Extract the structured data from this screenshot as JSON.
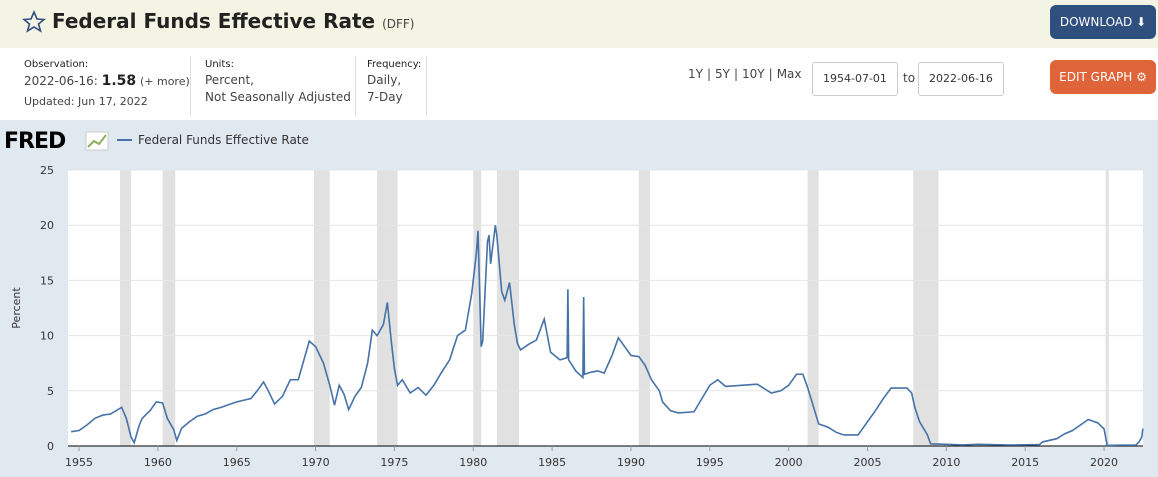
{
  "header": {
    "title": "Federal Funds Effective Rate",
    "code": "(DFF)",
    "download": "DOWNLOAD"
  },
  "info": {
    "observation_label": "Observation:",
    "observation_date": "2022-06-16:",
    "observation_value": "1.58",
    "more": "(+ more)",
    "updated": "Updated: Jun 17, 2022",
    "units_label": "Units:",
    "units": [
      "Percent,",
      "Not Seasonally Adjusted"
    ],
    "frequency_label": "Frequency:",
    "frequency": [
      "Daily,",
      "7-Day"
    ]
  },
  "controls": {
    "ranges": [
      "1Y",
      "5Y",
      "10Y",
      "Max"
    ],
    "separator": "|",
    "start": "1954-07-01",
    "to": "to",
    "end": "2022-06-16",
    "edit": "EDIT GRAPH"
  },
  "chart_data": {
    "type": "line",
    "brand": "FRED",
    "ylabel": "Percent",
    "x": [
      1954.5,
      1955,
      1955.5,
      1956,
      1956.5,
      1957,
      1957.7,
      1958,
      1958.3,
      1958.5,
      1958.8,
      1959,
      1959.5,
      1959.9,
      1960.3,
      1960.6,
      1960.8,
      1961,
      1961.2,
      1961.5,
      1962,
      1962.5,
      1963,
      1963.5,
      1964,
      1965,
      1965.9,
      1966.3,
      1966.7,
      1967,
      1967.4,
      1967.9,
      1968.4,
      1968.9,
      1969.3,
      1969.6,
      1970,
      1970.5,
      1970.9,
      1971.2,
      1971.5,
      1971.8,
      1972.1,
      1972.5,
      1972.9,
      1973.3,
      1973.6,
      1973.9,
      1974.3,
      1974.55,
      1974.8,
      1975,
      1975.2,
      1975.5,
      1976,
      1976.5,
      1977,
      1977.5,
      1978,
      1978.5,
      1979,
      1979.5,
      1979.9,
      1980.2,
      1980.3,
      1980.5,
      1980.6,
      1980.9,
      1981,
      1981.1,
      1981.4,
      1981.5,
      1981.8,
      1982,
      1982.3,
      1982.6,
      1982.8,
      1983,
      1983.5,
      1984,
      1984.5,
      1984.9,
      1985.5,
      1985.95,
      1986.0,
      1986.05,
      1986.5,
      1986.95,
      1987.0,
      1987.05,
      1987.5,
      1987.9,
      1988.3,
      1988.8,
      1989.2,
      1989.5,
      1990,
      1990.5,
      1990.9,
      1991.3,
      1991.8,
      1992,
      1992.5,
      1993,
      1994,
      1994.5,
      1995,
      1995.5,
      1996,
      1997,
      1998,
      1998.9,
      1999.5,
      2000,
      2000.5,
      2000.9,
      2001.2,
      2001.5,
      2001.9,
      2002.5,
      2003,
      2003.5,
      2004.4,
      2004.9,
      2005.5,
      2006,
      2006.5,
      2007.5,
      2007.8,
      2008,
      2008.3,
      2008.8,
      2009,
      2010,
      2011,
      2012,
      2014,
      2015.9,
      2016.1,
      2017,
      2017.5,
      2018,
      2018.5,
      2019,
      2019.6,
      2020,
      2020.2,
      2021,
      2022,
      2022.2,
      2022.4,
      2022.46
    ],
    "series": [
      {
        "name": "Federal Funds Effective Rate",
        "color": "#4572a7",
        "values": [
          1.3,
          1.4,
          1.9,
          2.5,
          2.8,
          2.9,
          3.5,
          2.5,
          0.8,
          0.3,
          1.8,
          2.5,
          3.2,
          4.0,
          3.9,
          2.5,
          2.0,
          1.5,
          0.5,
          1.6,
          2.2,
          2.7,
          2.9,
          3.3,
          3.5,
          4.0,
          4.3,
          5.0,
          5.8,
          5.0,
          3.8,
          4.5,
          6.0,
          6.0,
          8.0,
          9.5,
          9.0,
          7.5,
          5.5,
          3.7,
          5.5,
          4.7,
          3.3,
          4.5,
          5.3,
          7.5,
          10.5,
          10.0,
          11.0,
          13.0,
          9.5,
          7.0,
          5.5,
          6.0,
          4.8,
          5.3,
          4.6,
          5.5,
          6.7,
          7.8,
          10.0,
          10.5,
          13.8,
          17.5,
          19.5,
          9.0,
          9.5,
          18.5,
          19.1,
          16.5,
          20.0,
          19.0,
          14.0,
          13.2,
          14.8,
          11.0,
          9.3,
          8.7,
          9.2,
          9.6,
          11.5,
          8.5,
          7.8,
          8.0,
          14.2,
          7.8,
          6.8,
          6.2,
          13.5,
          6.5,
          6.7,
          6.8,
          6.6,
          8.2,
          9.8,
          9.2,
          8.2,
          8.1,
          7.3,
          6.0,
          5.0,
          4.0,
          3.2,
          3.0,
          3.1,
          4.3,
          5.5,
          6.0,
          5.4,
          5.5,
          5.6,
          4.8,
          5.0,
          5.5,
          6.5,
          6.5,
          5.3,
          3.9,
          2.0,
          1.7,
          1.25,
          1.0,
          1.0,
          2.0,
          3.2,
          4.3,
          5.25,
          5.25,
          4.8,
          3.5,
          2.2,
          1.0,
          0.2,
          0.15,
          0.1,
          0.15,
          0.09,
          0.13,
          0.37,
          0.66,
          1.1,
          1.4,
          1.9,
          2.4,
          2.1,
          1.55,
          0.05,
          0.08,
          0.08,
          0.33,
          0.83,
          1.58
        ]
      }
    ],
    "recessions": [
      [
        1957.6,
        1958.3
      ],
      [
        1960.3,
        1961.1
      ],
      [
        1969.9,
        1970.9
      ],
      [
        1973.9,
        1975.2
      ],
      [
        1980.0,
        1980.5
      ],
      [
        1981.5,
        1982.9
      ],
      [
        1990.5,
        1991.2
      ],
      [
        2001.2,
        2001.9
      ],
      [
        2007.9,
        2009.5
      ],
      [
        2020.1,
        2020.3
      ]
    ],
    "recession_color": "#e1e1e1",
    "xlim": [
      1954.3,
      2022.47
    ],
    "xticks": [
      1955,
      1960,
      1965,
      1970,
      1975,
      1980,
      1985,
      1990,
      1995,
      2000,
      2005,
      2010,
      2015,
      2020
    ],
    "ylim": [
      0,
      25
    ],
    "yticks": [
      0,
      5,
      10,
      15,
      20,
      25
    ],
    "grid": true
  }
}
